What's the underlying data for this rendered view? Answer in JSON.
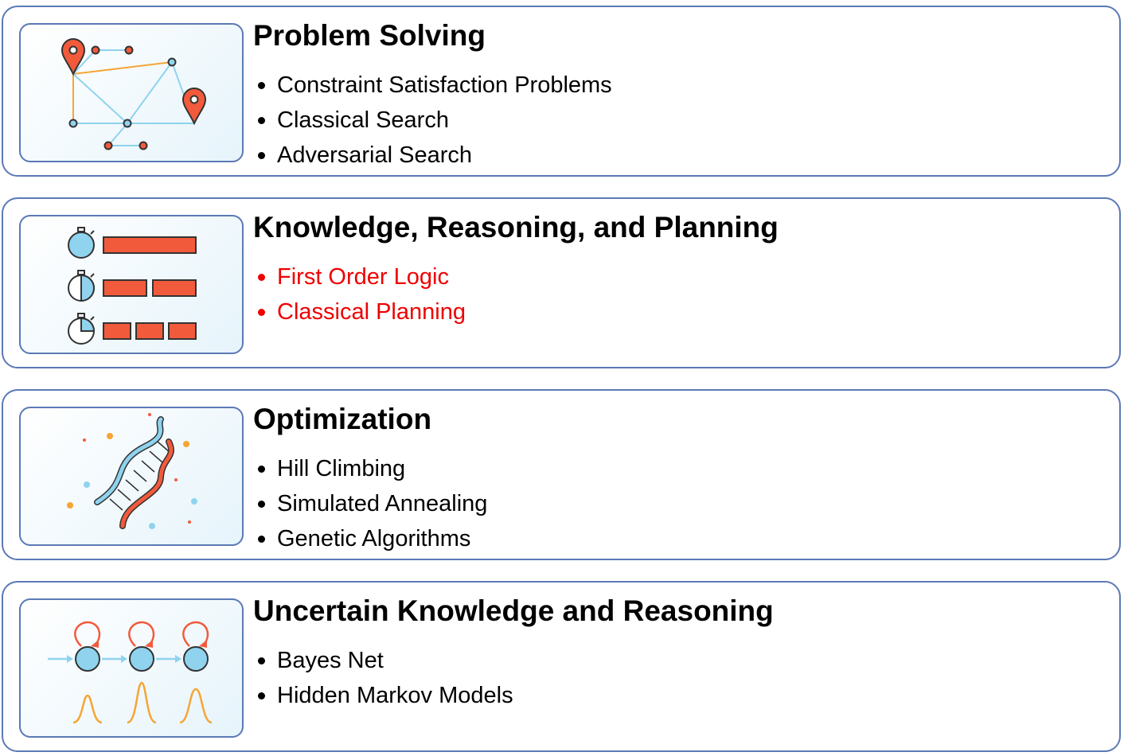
{
  "sections": [
    {
      "title": "Problem Solving",
      "icon": "route-map-icon",
      "items": [
        "Constraint Satisfaction Problems",
        "Classical Search",
        "Adversarial Search"
      ],
      "item_color": "#000000"
    },
    {
      "title": "Knowledge, Reasoning, and Planning",
      "icon": "stopwatch-tasks-icon",
      "items": [
        "First Order Logic",
        "Classical Planning"
      ],
      "item_color": "#ee0000"
    },
    {
      "title": "Optimization",
      "icon": "dna-icon",
      "items": [
        "Hill Climbing",
        "Simulated Annealing",
        "Genetic Algorithms"
      ],
      "item_color": "#000000"
    },
    {
      "title": "Uncertain Knowledge and Reasoning",
      "icon": "markov-chain-icon",
      "items": [
        "Bayes Net",
        "Hidden Markov Models"
      ],
      "item_color": "#000000"
    }
  ],
  "colors": {
    "border": "#5b79b5",
    "accent_red": "#f25a3c",
    "accent_blue": "#8fd3ee",
    "accent_orange": "#f7a534",
    "highlight_text": "#ee0000"
  }
}
